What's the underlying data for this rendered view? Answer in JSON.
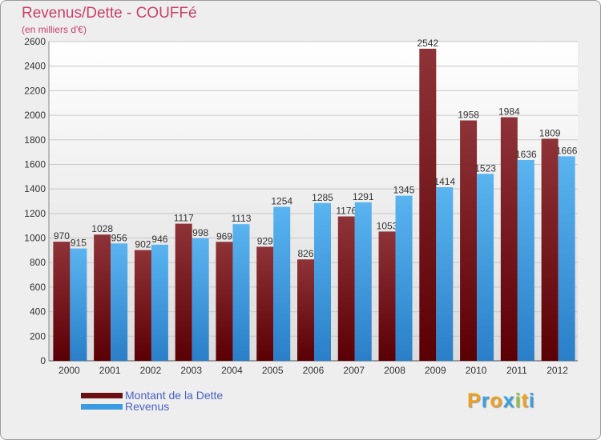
{
  "title": "Revenus/Dette - COUFFé",
  "subtitle": "(en milliers d'€)",
  "chart_data": {
    "type": "bar",
    "title": "Revenus/Dette - COUFFé",
    "ylabel": "(en milliers d'€)",
    "xlabel": "",
    "categories": [
      "2000",
      "2001",
      "2002",
      "2003",
      "2004",
      "2005",
      "2006",
      "2007",
      "2008",
      "2009",
      "2010",
      "2011",
      "2012"
    ],
    "series": [
      {
        "name": "Montant de la Dette",
        "color": "#7a1f24",
        "values": [
          970,
          1028,
          902,
          1117,
          969,
          929,
          826,
          1176,
          1053,
          2542,
          1958,
          1984,
          1809
        ]
      },
      {
        "name": "Revenus",
        "color": "#3c9be3",
        "values": [
          915,
          956,
          946,
          998,
          1113,
          1254,
          1285,
          1291,
          1345,
          1414,
          1523,
          1636,
          1666
        ]
      }
    ],
    "ylim": [
      0,
      2600
    ],
    "yticks": [
      0,
      200,
      400,
      600,
      800,
      1000,
      1200,
      1400,
      1600,
      1800,
      2000,
      2200,
      2400,
      2600
    ],
    "grid": true,
    "legend": "bottom-left"
  },
  "legend": [
    {
      "label": "Montant de la Dette",
      "color": "#6b0f12"
    },
    {
      "label": "Revenus",
      "color": "#3c9be3"
    }
  ],
  "logo": {
    "letters": [
      "P",
      "r",
      "o",
      "x",
      "i",
      "t",
      "i"
    ],
    "colors": [
      "#f0a020",
      "#3aa0e0",
      "#f0a020",
      "#3aa0e0",
      "#8bc34a",
      "#f0a020",
      "#3aa0e0"
    ]
  }
}
